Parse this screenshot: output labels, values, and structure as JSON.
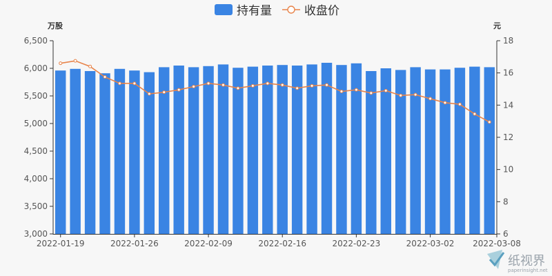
{
  "chart_data": {
    "type": "bar+line",
    "legend": {
      "placement": "top-center"
    },
    "x": [
      "2022-01-19",
      "2022-01-20",
      "2022-01-21",
      "2022-01-24",
      "2022-01-25",
      "2022-01-26",
      "2022-01-27",
      "2022-01-28",
      "2022-02-07",
      "2022-02-08",
      "2022-02-09",
      "2022-02-10",
      "2022-02-11",
      "2022-02-14",
      "2022-02-15",
      "2022-02-16",
      "2022-02-17",
      "2022-02-18",
      "2022-02-21",
      "2022-02-22",
      "2022-02-23",
      "2022-02-24",
      "2022-02-25",
      "2022-02-28",
      "2022-03-01",
      "2022-03-02",
      "2022-03-03",
      "2022-03-04",
      "2022-03-07",
      "2022-03-08"
    ],
    "x_tick_labels": [
      "2022-01-19",
      "2022-01-26",
      "2022-02-09",
      "2022-02-16",
      "2022-02-23",
      "2022-03-02",
      "2022-03-08"
    ],
    "series": [
      {
        "name": "持有量",
        "type": "bar",
        "axis": "left",
        "color": "#3a84e3",
        "values": [
          5960,
          5990,
          5950,
          5910,
          5990,
          5960,
          5930,
          6020,
          6050,
          6020,
          6040,
          6070,
          6010,
          6030,
          6050,
          6060,
          6050,
          6070,
          6100,
          6060,
          6090,
          5950,
          6000,
          5970,
          6020,
          5980,
          5980,
          6010,
          6030,
          6020
        ]
      },
      {
        "name": "收盘价",
        "type": "line",
        "axis": "right",
        "color": "#e8844a",
        "values": [
          16.6,
          16.75,
          16.4,
          15.75,
          15.35,
          15.35,
          14.7,
          14.8,
          14.95,
          15.15,
          15.35,
          15.25,
          15.05,
          15.2,
          15.35,
          15.25,
          15.05,
          15.2,
          15.25,
          14.85,
          14.95,
          14.75,
          14.9,
          14.6,
          14.65,
          14.4,
          14.15,
          14.05,
          13.45,
          12.95
        ]
      }
    ],
    "y_left": {
      "unit": "万股",
      "min": 3000,
      "max": 6500,
      "ticks": [
        "3,000",
        "3,500",
        "4,000",
        "4,500",
        "5,000",
        "5,500",
        "6,000",
        "6,500"
      ]
    },
    "y_right": {
      "unit": "元",
      "min": 6,
      "max": 18,
      "ticks": [
        "6",
        "8",
        "10",
        "12",
        "14",
        "16",
        "18"
      ]
    },
    "grid": false
  },
  "watermark": {
    "name": "纸视界",
    "url": "paperinsight.net",
    "icon": "paperinsight-logo-icon"
  }
}
